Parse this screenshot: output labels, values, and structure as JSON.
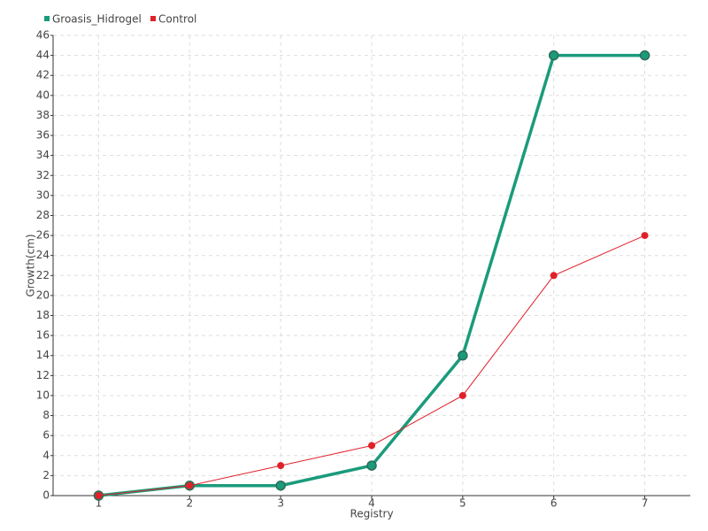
{
  "chart_data": {
    "type": "line",
    "categories": [
      "1",
      "2",
      "3",
      "4",
      "5",
      "6",
      "7"
    ],
    "series": [
      {
        "name": "Groasis_Hidrogel",
        "color": "#1a9b7b",
        "values": [
          0,
          1,
          1,
          3,
          14,
          44,
          44
        ]
      },
      {
        "name": "Control",
        "color": "#e0202a",
        "values": [
          0,
          1,
          3,
          5,
          10,
          22,
          26
        ]
      }
    ],
    "x_label": "Registry",
    "y_label": "Growth(cm)",
    "ylim": [
      0,
      46
    ],
    "yticks": [
      0,
      2,
      4,
      6,
      8,
      10,
      12,
      14,
      16,
      18,
      20,
      22,
      24,
      26,
      28,
      30,
      32,
      34,
      36,
      38,
      40,
      42,
      44,
      46
    ],
    "grid": true
  }
}
